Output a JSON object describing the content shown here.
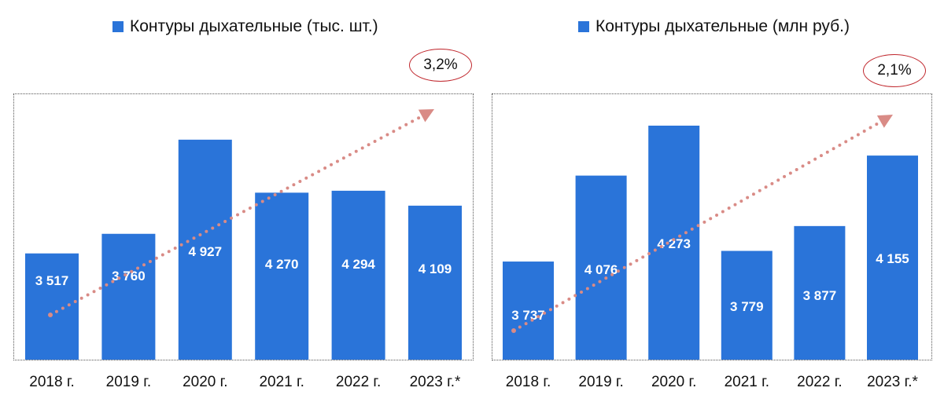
{
  "colors": {
    "bar": "#2a74d9",
    "trend": "#d98b86",
    "callout_border": "#c0272d",
    "value_text": "#ffffff"
  },
  "chart_data": [
    {
      "type": "bar",
      "legend": "Контуры дыхательные (тыс. шт.)",
      "categories": [
        "2018 г.",
        "2019 г.",
        "2020 г.",
        "2021 г.",
        "2022 г.",
        "2023 г.*"
      ],
      "values": [
        3517,
        3760,
        4927,
        4270,
        4294,
        4109
      ],
      "value_labels": [
        "3 517",
        "3 760",
        "4 927",
        "4 270",
        "4 294",
        "4 109"
      ],
      "growth_label": "3,2%",
      "trend": "dotted arrow, rising",
      "ylim": [
        2200,
        5500
      ]
    },
    {
      "type": "bar",
      "legend": "Контуры дыхательные (млн руб.)",
      "categories": [
        "2018 г.",
        "2019 г.",
        "2020 г.",
        "2021 г.",
        "2022 г.",
        "2023 г.*"
      ],
      "values": [
        3737,
        4076,
        4273,
        3779,
        3877,
        4155
      ],
      "value_labels": [
        "3 737",
        "4 076",
        "4 273",
        "3 779",
        "3 877",
        "4 155"
      ],
      "growth_label": "2,1%",
      "trend": "dotted arrow, rising",
      "ylim": [
        3350,
        4400
      ]
    }
  ]
}
